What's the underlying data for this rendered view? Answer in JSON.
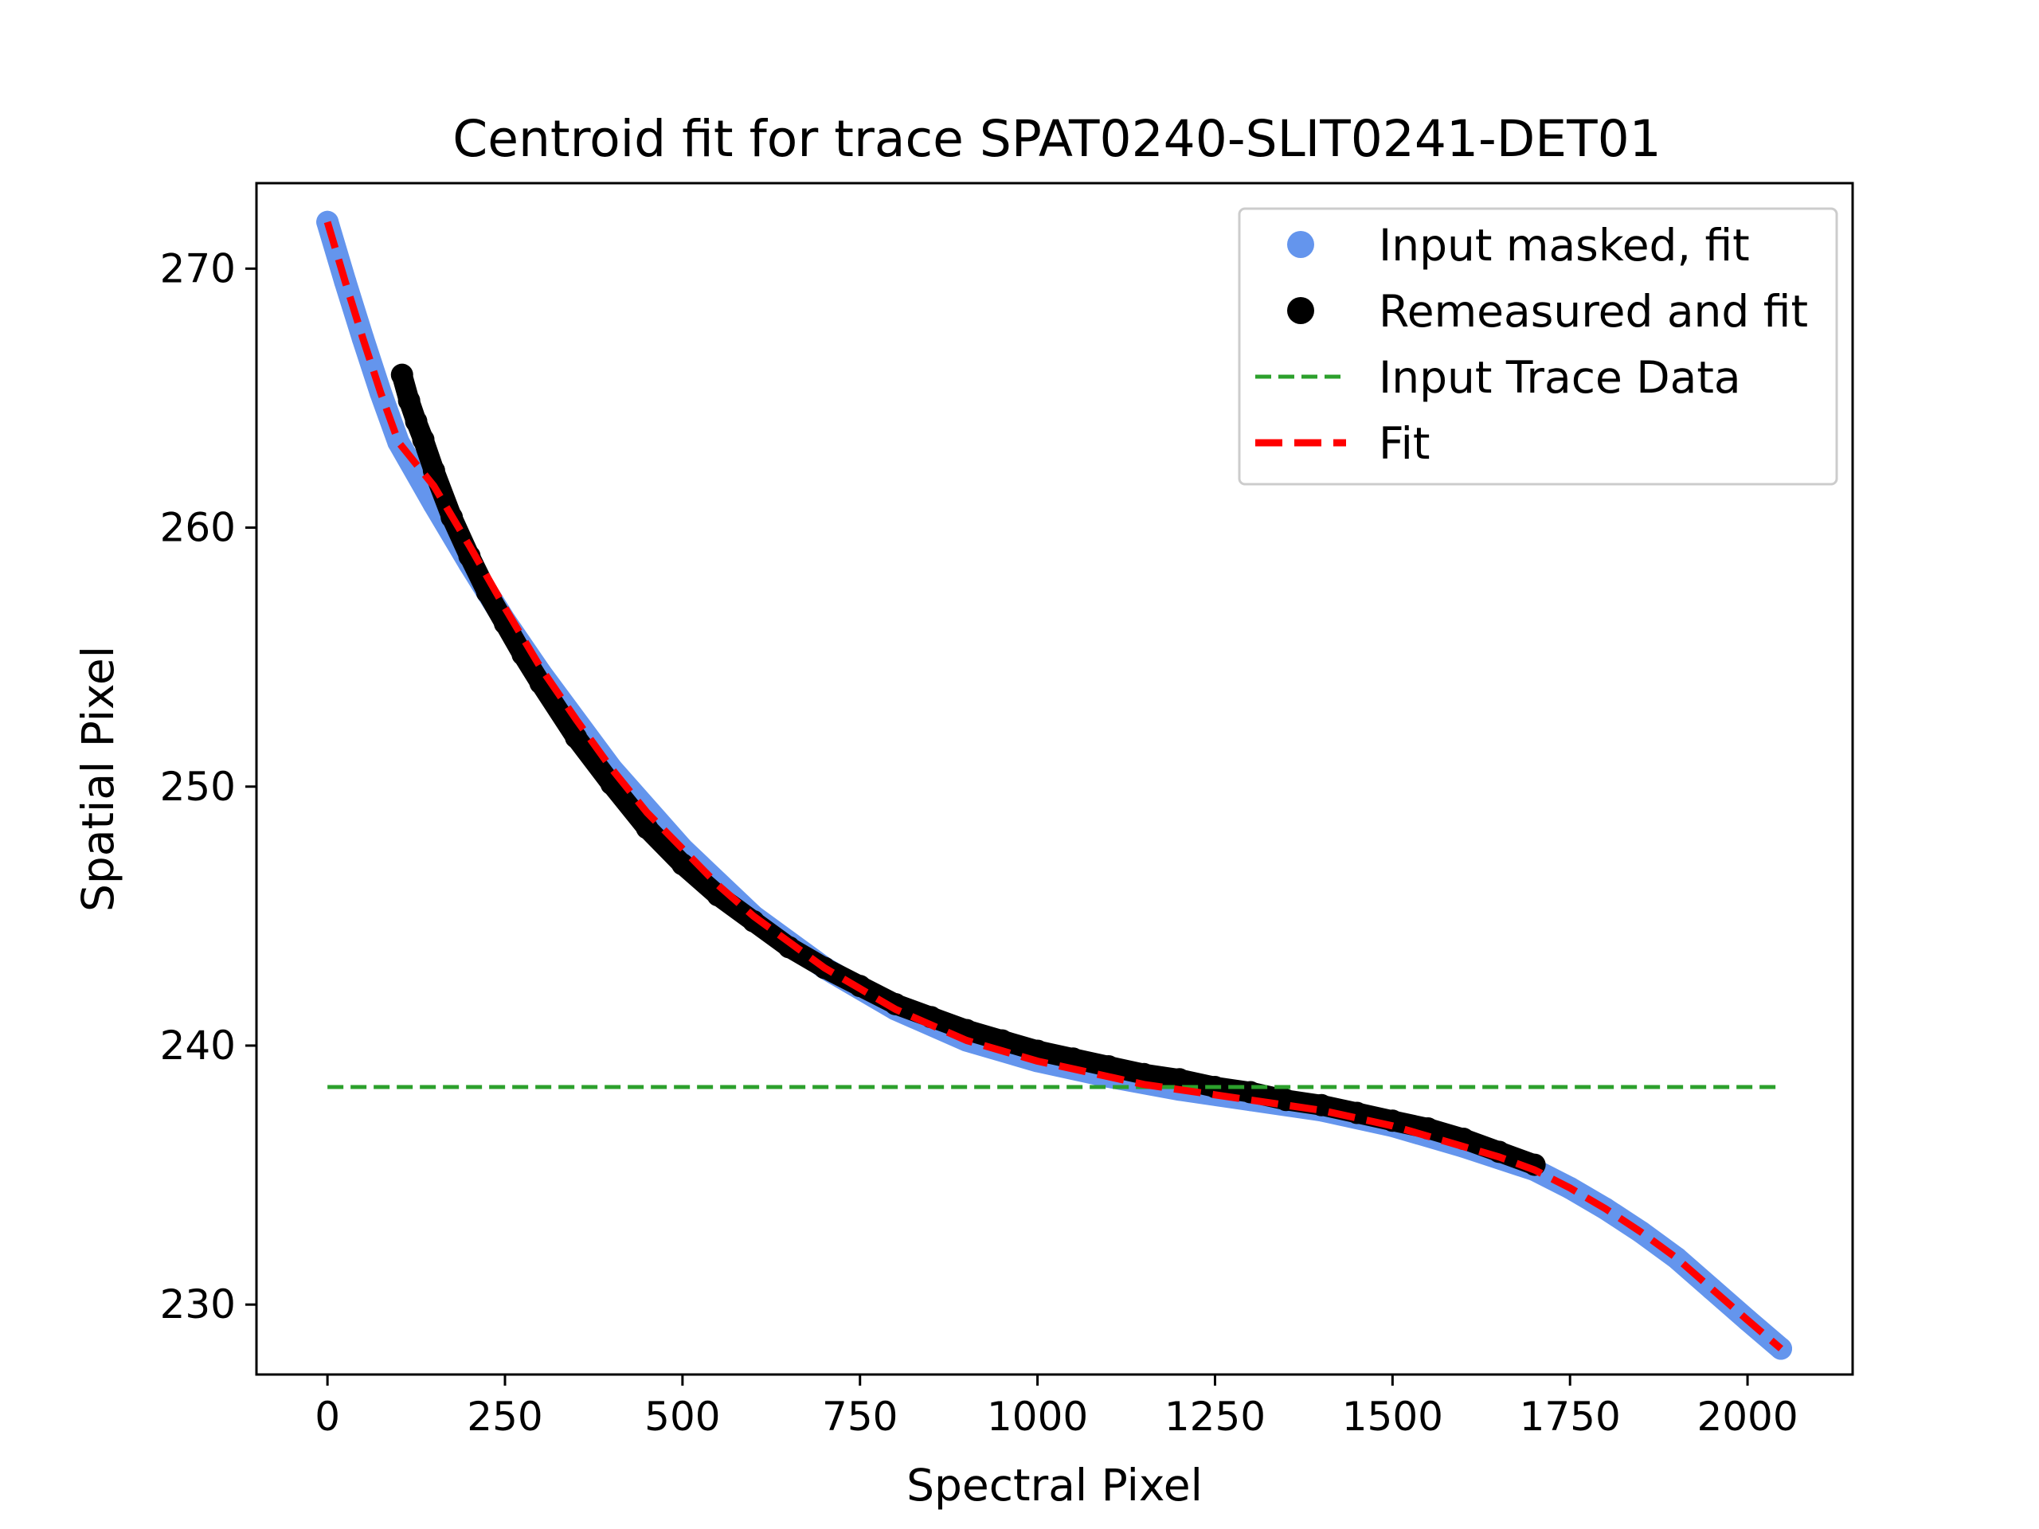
{
  "chart_data": {
    "type": "scatter",
    "title": "Centroid fit for trace SPAT0240-SLIT0241-DET01",
    "xlabel": "Spectral Pixel",
    "ylabel": "Spatial Pixel",
    "xlim": [
      -100,
      2148
    ],
    "ylim": [
      227.3,
      273.3
    ],
    "xticks": [
      0,
      250,
      500,
      750,
      1000,
      1250,
      1500,
      1750,
      2000
    ],
    "xtick_labels": [
      "0",
      "250",
      "500",
      "750",
      "1000",
      "1250",
      "1500",
      "1750",
      "2000"
    ],
    "yticks": [
      230,
      240,
      250,
      260,
      270
    ],
    "ytick_labels": [
      "230",
      "240",
      "250",
      "260",
      "270"
    ],
    "legend_position": "top-right",
    "grid": false,
    "series": [
      {
        "name": "Input masked, fit",
        "kind": "scatter",
        "color": "#6495ed",
        "x": [
          0,
          25,
          50,
          75,
          100,
          150,
          200,
          250,
          300,
          400,
          500,
          600,
          700,
          800,
          900,
          1000,
          1100,
          1200,
          1300,
          1400,
          1500,
          1600,
          1700,
          1750,
          1800,
          1850,
          1900,
          1950,
          2000,
          2047
        ],
        "y": [
          271.8,
          269.5,
          267.3,
          265.2,
          263.3,
          260.9,
          258.6,
          256.4,
          254.4,
          250.7,
          247.6,
          245.0,
          243.0,
          241.4,
          240.2,
          239.4,
          238.8,
          238.3,
          237.9,
          237.5,
          236.9,
          236.1,
          235.2,
          234.5,
          233.7,
          232.8,
          231.8,
          230.6,
          229.4,
          228.3
        ]
      },
      {
        "name": "Remeasured and fit",
        "kind": "scatter",
        "color": "#000000",
        "x": [
          105,
          115,
          125,
          135,
          150,
          175,
          200,
          225,
          250,
          275,
          300,
          350,
          400,
          450,
          500,
          550,
          600,
          650,
          700,
          750,
          800,
          850,
          900,
          950,
          1000,
          1050,
          1100,
          1150,
          1200,
          1250,
          1300,
          1350,
          1400,
          1450,
          1500,
          1550,
          1600,
          1650,
          1700
        ],
        "y": [
          265.9,
          264.9,
          264.1,
          263.4,
          262.2,
          260.4,
          258.9,
          257.5,
          256.3,
          255.1,
          254.0,
          251.9,
          250.1,
          248.4,
          247.0,
          245.8,
          244.8,
          243.8,
          243.0,
          242.3,
          241.6,
          241.1,
          240.6,
          240.2,
          239.8,
          239.5,
          239.2,
          238.9,
          238.7,
          238.4,
          238.2,
          237.9,
          237.7,
          237.4,
          237.1,
          236.8,
          236.4,
          235.9,
          235.4
        ]
      },
      {
        "name": "Input Trace Data",
        "kind": "dashed-line",
        "color": "#2ca02c",
        "x": [
          0,
          2047
        ],
        "y": [
          238.4,
          238.4
        ]
      },
      {
        "name": "Fit",
        "kind": "dashed-line",
        "color": "#ff0000",
        "x": [
          0,
          25,
          50,
          75,
          100,
          150,
          200,
          250,
          300,
          350,
          400,
          450,
          500,
          550,
          600,
          650,
          700,
          750,
          800,
          850,
          900,
          950,
          1000,
          1050,
          1100,
          1150,
          1200,
          1250,
          1300,
          1350,
          1400,
          1450,
          1500,
          1550,
          1600,
          1650,
          1700,
          1750,
          1800,
          1850,
          1900,
          1950,
          2000,
          2047
        ],
        "y": [
          271.8,
          269.5,
          267.3,
          265.2,
          263.3,
          261.6,
          259.3,
          256.9,
          254.6,
          252.6,
          250.7,
          249.0,
          247.6,
          246.2,
          245.0,
          244.0,
          243.0,
          242.2,
          241.4,
          240.8,
          240.2,
          239.8,
          239.4,
          239.1,
          238.8,
          238.5,
          238.3,
          238.1,
          237.9,
          237.7,
          237.5,
          237.2,
          236.9,
          236.5,
          236.1,
          235.7,
          235.2,
          234.5,
          233.7,
          232.8,
          231.8,
          230.6,
          229.4,
          228.3
        ]
      }
    ]
  },
  "colors": {
    "input_masked": "#6495ed",
    "remeasured": "#000000",
    "input_trace": "#2ca02c",
    "fit": "#ff0000"
  }
}
